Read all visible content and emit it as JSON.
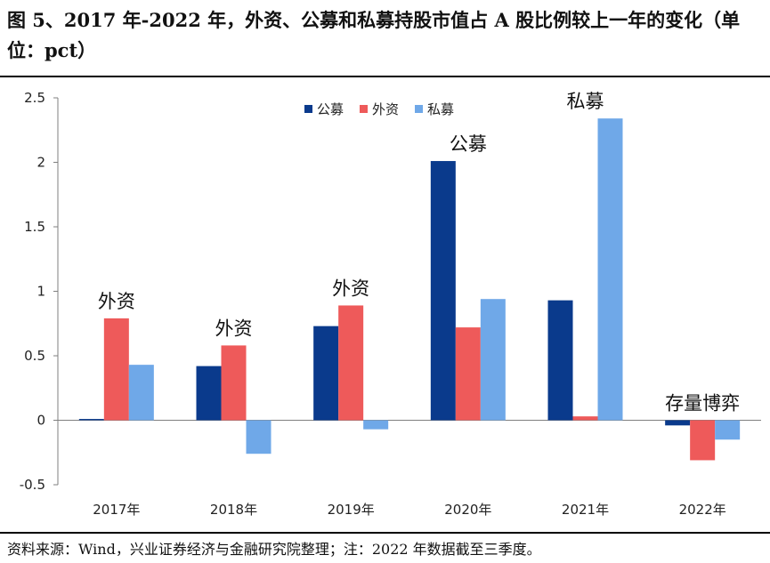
{
  "title": "图 5、2017 年-2022 年，外资、公募和私募持股市值占 A 股比例较上一年的变化（单位：pct）",
  "footer": "资料来源：Wind，兴业证券经济与金融研究院整理；注：2022 年数据截至三季度。",
  "chart_data": {
    "type": "bar",
    "categories": [
      "2017年",
      "2018年",
      "2019年",
      "2020年",
      "2021年",
      "2022年"
    ],
    "series": [
      {
        "name": "公募",
        "color": "#0A3A8C",
        "values": [
          0.01,
          0.42,
          0.73,
          2.01,
          0.93,
          -0.04
        ]
      },
      {
        "name": "外资",
        "color": "#EE5A5A",
        "values": [
          0.79,
          0.58,
          0.89,
          0.72,
          0.03,
          -0.31
        ]
      },
      {
        "name": "私募",
        "color": "#6FA8E8",
        "values": [
          0.43,
          -0.26,
          -0.07,
          0.94,
          2.34,
          -0.15
        ]
      }
    ],
    "ylim": [
      -0.5,
      2.5
    ],
    "yticks": [
      -0.5,
      0,
      0.5,
      1,
      1.5,
      2,
      2.5
    ],
    "ytick_labels": [
      "-0.5",
      "0",
      "0.5",
      "1",
      "1.5",
      "2",
      "2.5"
    ],
    "legend_position": "top-center",
    "grid": false,
    "annotations": [
      {
        "text": "外资",
        "category": "2017年",
        "value": 0.79
      },
      {
        "text": "外资",
        "category": "2018年",
        "value": 0.58
      },
      {
        "text": "外资",
        "category": "2019年",
        "value": 0.89
      },
      {
        "text": "公募",
        "category": "2020年",
        "value": 2.01
      },
      {
        "text": "私募",
        "category": "2021年",
        "value": 2.34
      },
      {
        "text": "存量博弈",
        "category": "2022年",
        "value": 0.0
      }
    ]
  }
}
